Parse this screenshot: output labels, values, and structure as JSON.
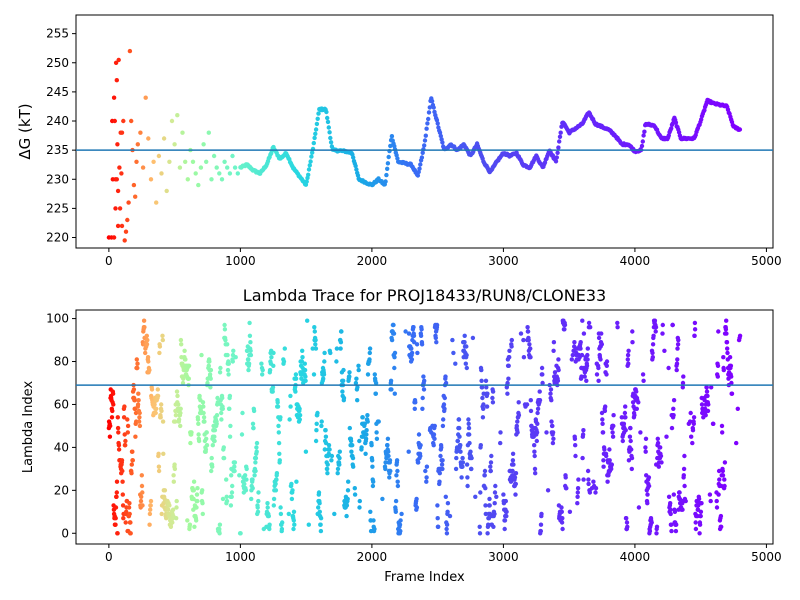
{
  "figure": {
    "background": "#ffffff",
    "hline_color": "#1f77b4",
    "colormap": "rainbow-reversed"
  },
  "chart_data": [
    {
      "type": "scatter",
      "title": "",
      "xlabel": "",
      "ylabel": "ΔG (kT)",
      "xlim": [
        -250,
        5050
      ],
      "ylim": [
        218.2,
        258.2
      ],
      "xticks": [
        0,
        1000,
        2000,
        3000,
        4000,
        5000
      ],
      "yticks": [
        220,
        225,
        230,
        235,
        240,
        245,
        250,
        255
      ],
      "hline": 235,
      "grid": false,
      "trace_start_frame": 1000,
      "trace_end_frame": 4800,
      "trace_keypoints": [
        [
          1000,
          232
        ],
        [
          1050,
          232.5
        ],
        [
          1100,
          231.5
        ],
        [
          1150,
          231
        ],
        [
          1200,
          232.5
        ],
        [
          1250,
          235.5
        ],
        [
          1300,
          233.5
        ],
        [
          1350,
          234.5
        ],
        [
          1400,
          232
        ],
        [
          1450,
          230.5
        ],
        [
          1500,
          229
        ],
        [
          1550,
          235
        ],
        [
          1600,
          242
        ],
        [
          1650,
          242
        ],
        [
          1700,
          235
        ],
        [
          1800,
          234.8
        ],
        [
          1850,
          234.5
        ],
        [
          1900,
          230
        ],
        [
          1950,
          229.5
        ],
        [
          2000,
          229
        ],
        [
          2050,
          230
        ],
        [
          2100,
          229
        ],
        [
          2150,
          237.5
        ],
        [
          2200,
          233
        ],
        [
          2300,
          232.5
        ],
        [
          2350,
          230.5
        ],
        [
          2400,
          236
        ],
        [
          2450,
          244
        ],
        [
          2500,
          239.5
        ],
        [
          2550,
          235
        ],
        [
          2600,
          236
        ],
        [
          2650,
          235
        ],
        [
          2700,
          236
        ],
        [
          2750,
          234
        ],
        [
          2800,
          236
        ],
        [
          2850,
          233
        ],
        [
          2900,
          231.2
        ],
        [
          2950,
          233
        ],
        [
          3000,
          234.5
        ],
        [
          3050,
          234
        ],
        [
          3100,
          234.5
        ],
        [
          3150,
          232.5
        ],
        [
          3200,
          232
        ],
        [
          3250,
          234
        ],
        [
          3300,
          232
        ],
        [
          3350,
          235
        ],
        [
          3400,
          233
        ],
        [
          3450,
          240
        ],
        [
          3500,
          238
        ],
        [
          3600,
          239.5
        ],
        [
          3650,
          241.5
        ],
        [
          3700,
          239.5
        ],
        [
          3800,
          238.5
        ],
        [
          3850,
          237.5
        ],
        [
          3900,
          236
        ],
        [
          3950,
          236
        ],
        [
          4000,
          234.8
        ],
        [
          4050,
          235
        ],
        [
          4080,
          239.5
        ],
        [
          4150,
          239.2
        ],
        [
          4200,
          237
        ],
        [
          4250,
          237
        ],
        [
          4300,
          240.5
        ],
        [
          4350,
          237
        ],
        [
          4450,
          237
        ],
        [
          4500,
          240
        ],
        [
          4550,
          243.5
        ],
        [
          4600,
          243
        ],
        [
          4700,
          242.5
        ],
        [
          4750,
          239
        ],
        [
          4800,
          238.5
        ]
      ],
      "early_points": [
        [
          0,
          220
        ],
        [
          20,
          220
        ],
        [
          40,
          220
        ],
        [
          30,
          230
        ],
        [
          50,
          230
        ],
        [
          60,
          230
        ],
        [
          25,
          240
        ],
        [
          45,
          240
        ],
        [
          40,
          244
        ],
        [
          55,
          250
        ],
        [
          75,
          250.5
        ],
        [
          60,
          247
        ],
        [
          65,
          236
        ],
        [
          70,
          228
        ],
        [
          80,
          232
        ],
        [
          50,
          225
        ],
        [
          90,
          238
        ],
        [
          100,
          238
        ],
        [
          110,
          240
        ],
        [
          95,
          231
        ],
        [
          85,
          225
        ],
        [
          100,
          222
        ],
        [
          70,
          222
        ],
        [
          120,
          219.5
        ],
        [
          130,
          221
        ],
        [
          140,
          223
        ],
        [
          150,
          226
        ],
        [
          160,
          252
        ],
        [
          170,
          240
        ],
        [
          180,
          235
        ],
        [
          190,
          229
        ],
        [
          200,
          227
        ],
        [
          210,
          233
        ],
        [
          220,
          236
        ],
        [
          240,
          238
        ],
        [
          260,
          232
        ],
        [
          280,
          244
        ],
        [
          300,
          237
        ],
        [
          320,
          230
        ],
        [
          340,
          233
        ],
        [
          360,
          226
        ],
        [
          380,
          234
        ],
        [
          400,
          231
        ],
        [
          420,
          237
        ],
        [
          440,
          228
        ],
        [
          460,
          233
        ],
        [
          480,
          240
        ],
        [
          500,
          236
        ],
        [
          520,
          241
        ],
        [
          540,
          232
        ],
        [
          560,
          238
        ],
        [
          580,
          233
        ],
        [
          600,
          230
        ],
        [
          620,
          235
        ],
        [
          640,
          233
        ],
        [
          660,
          231
        ],
        [
          680,
          229
        ],
        [
          700,
          232
        ],
        [
          720,
          236
        ],
        [
          740,
          233
        ],
        [
          760,
          238
        ],
        [
          780,
          230
        ],
        [
          800,
          234
        ],
        [
          820,
          232
        ],
        [
          840,
          231
        ],
        [
          860,
          230
        ],
        [
          880,
          233
        ],
        [
          900,
          232
        ],
        [
          920,
          231
        ],
        [
          940,
          234
        ],
        [
          960,
          232
        ],
        [
          980,
          231
        ]
      ]
    },
    {
      "type": "scatter",
      "title": "Lambda Trace for PROJ18433/RUN8/CLONE33",
      "xlabel": "Frame Index",
      "ylabel": "Lambda Index",
      "xlim": [
        -250,
        5050
      ],
      "ylim": [
        -5,
        104
      ],
      "xticks": [
        0,
        1000,
        2000,
        3000,
        4000,
        5000
      ],
      "yticks": [
        0,
        20,
        40,
        60,
        80,
        100
      ],
      "hline": 69,
      "grid": false,
      "frame_count": 4800,
      "value_range": [
        0,
        99
      ]
    }
  ]
}
